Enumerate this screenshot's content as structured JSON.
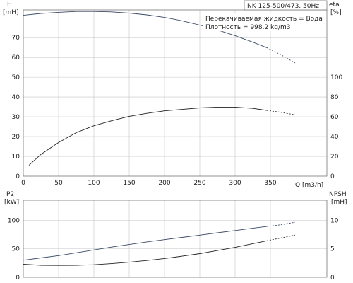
{
  "header": {
    "title": "NK 125-500/473, 50Hz",
    "fluid": "Перекачиваемая жидкость = Вода",
    "density": "Плотность = 998.2 kg/m3"
  },
  "colors": {
    "head": "#3a4a66",
    "efficiency": "#222222",
    "p2": "#3a4a66",
    "npsh": "#222222",
    "grid": "#c4c4c4",
    "frame": "#777777"
  },
  "chart_data": [
    {
      "type": "line",
      "xlabel": "Q [m3/h]",
      "ylabel": "H\n[mH]",
      "y2label": "eta\n[%]",
      "xlim": [
        0,
        430
      ],
      "ylim": [
        0,
        84
      ],
      "y2lim": [
        0,
        168
      ],
      "grid": true,
      "x_ticks": [
        0,
        50,
        100,
        150,
        200,
        250,
        300,
        350
      ],
      "x_tick_labels": [
        "0",
        "50",
        "100",
        "150",
        "200",
        "250",
        "300",
        "350"
      ],
      "y_ticks": [
        0,
        10,
        20,
        30,
        40,
        50,
        60,
        70
      ],
      "y_tick_labels": [
        "0",
        "10",
        "20",
        "30",
        "40",
        "50",
        "60",
        "70"
      ],
      "y2_ticks": [
        0,
        20,
        40,
        60,
        80,
        100
      ],
      "y2_tick_labels": [
        "0",
        "20",
        "40",
        "60",
        "80",
        "100"
      ],
      "series": [
        {
          "axis": "left",
          "color": "#3a4a66",
          "x": [
            0,
            25,
            50,
            75,
            100,
            125,
            150,
            175,
            200,
            225,
            250,
            275,
            300,
            325,
            345,
            365,
            385
          ],
          "y": [
            81.3,
            82.2,
            82.8,
            83.2,
            83.2,
            83,
            82.4,
            81.5,
            80.2,
            78.5,
            76.3,
            73.9,
            71,
            67.7,
            64.9,
            61.3,
            57.2
          ],
          "dashed_from_x": 345
        },
        {
          "axis": "right",
          "color": "#222222",
          "x": [
            8,
            25,
            50,
            75,
            100,
            125,
            150,
            175,
            200,
            225,
            250,
            275,
            300,
            325,
            345,
            365,
            385
          ],
          "y": [
            11,
            22,
            34,
            44,
            51,
            56,
            60.5,
            63.5,
            66,
            67.5,
            69,
            69.8,
            69.8,
            68.5,
            66.5,
            64.5,
            62
          ],
          "dashed_from_x": 345
        }
      ]
    },
    {
      "type": "line",
      "ylabel": "P2\n[kW]",
      "y2label": "NPSH\n[mH]",
      "xlim": [
        0,
        430
      ],
      "ylim": [
        0,
        135
      ],
      "y2lim": [
        0,
        13.5
      ],
      "grid": true,
      "x_ticks": [
        0,
        50,
        100,
        150,
        200,
        250,
        300,
        350
      ],
      "y_ticks": [
        0,
        50,
        100
      ],
      "y_tick_labels": [
        "0",
        "50",
        "100"
      ],
      "y2_ticks": [
        0,
        5,
        10
      ],
      "y2_tick_labels": [
        "0",
        "5",
        "10"
      ],
      "series": [
        {
          "axis": "left",
          "color": "#3a4a66",
          "x": [
            0,
            25,
            50,
            75,
            100,
            125,
            150,
            175,
            200,
            225,
            250,
            275,
            300,
            325,
            345,
            365,
            385
          ],
          "y": [
            30,
            34,
            38,
            43,
            48,
            53,
            57.5,
            62,
            66,
            70,
            74,
            78,
            82,
            86,
            89,
            92,
            96.5
          ],
          "dashed_from_x": 345
        },
        {
          "axis": "right",
          "color": "#222222",
          "x": [
            0,
            25,
            50,
            75,
            100,
            125,
            150,
            175,
            200,
            225,
            250,
            275,
            300,
            325,
            345,
            365,
            385
          ],
          "y": [
            2.3,
            2.1,
            2.08,
            2.1,
            2.2,
            2.4,
            2.65,
            2.95,
            3.3,
            3.7,
            4.15,
            4.7,
            5.25,
            5.9,
            6.4,
            6.9,
            7.4
          ],
          "dashed_from_x": 345
        }
      ]
    }
  ]
}
